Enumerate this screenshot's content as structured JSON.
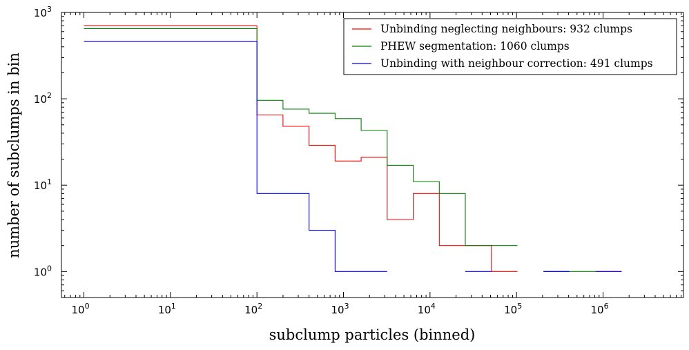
{
  "chart_data": {
    "type": "line",
    "drawstyle": "steps",
    "title": "",
    "xlabel": "subclump particles (binned)",
    "ylabel": "number of subclumps in bin",
    "xscale": "log",
    "yscale": "log",
    "xlim": [
      0.55,
      8500000
    ],
    "ylim": [
      0.5,
      1000
    ],
    "x_ticks": [
      {
        "base": "10",
        "exp": "0",
        "value": 1
      },
      {
        "base": "10",
        "exp": "1",
        "value": 10
      },
      {
        "base": "10",
        "exp": "2",
        "value": 100
      },
      {
        "base": "10",
        "exp": "3",
        "value": 1000
      },
      {
        "base": "10",
        "exp": "4",
        "value": 10000
      },
      {
        "base": "10",
        "exp": "5",
        "value": 100000
      },
      {
        "base": "10",
        "exp": "6",
        "value": 1000000
      }
    ],
    "y_ticks": [
      {
        "base": "10",
        "exp": "0",
        "value": 1
      },
      {
        "base": "10",
        "exp": "1",
        "value": 10
      },
      {
        "base": "10",
        "exp": "2",
        "value": 100
      },
      {
        "base": "10",
        "exp": "3",
        "value": 1000
      }
    ],
    "legend_position": "top-right",
    "series": [
      {
        "name": "Unbinding neglecting neighbours: 932 clumps",
        "color": "#ff0000",
        "segments": [
          [
            [
              1,
              700
            ],
            [
              100,
              700
            ],
            [
              100,
              65
            ],
            [
              200,
              65
            ],
            [
              200,
              48
            ],
            [
              400,
              48
            ],
            [
              400,
              29
            ],
            [
              800,
              29
            ],
            [
              800,
              19
            ],
            [
              1600,
              19
            ],
            [
              1600,
              21
            ],
            [
              3200,
              21
            ],
            [
              3200,
              4
            ],
            [
              6400,
              4
            ],
            [
              6400,
              8
            ],
            [
              12800,
              8
            ],
            [
              12800,
              2
            ],
            [
              51200,
              2
            ],
            [
              51200,
              1
            ],
            [
              102400,
              1
            ]
          ],
          [
            [
              204800,
              1
            ],
            [
              409600,
              1
            ]
          ],
          [
            [
              819200,
              1
            ],
            [
              1638400,
              1
            ]
          ]
        ]
      },
      {
        "name": "PHEW segmentation: 1060 clumps",
        "color": "#008000",
        "segments": [
          [
            [
              1,
              650
            ],
            [
              100,
              650
            ],
            [
              100,
              96
            ],
            [
              200,
              96
            ],
            [
              200,
              76
            ],
            [
              400,
              76
            ],
            [
              400,
              68
            ],
            [
              800,
              68
            ],
            [
              800,
              59
            ],
            [
              1600,
              59
            ],
            [
              1600,
              43
            ],
            [
              3200,
              43
            ],
            [
              3200,
              17
            ],
            [
              6400,
              17
            ],
            [
              6400,
              11
            ],
            [
              12800,
              11
            ],
            [
              12800,
              8
            ],
            [
              25600,
              8
            ],
            [
              25600,
              2
            ],
            [
              102400,
              2
            ]
          ],
          [
            [
              204800,
              1
            ],
            [
              819200,
              1
            ]
          ]
        ]
      },
      {
        "name": "Unbinding with neighbour correction: 491 clumps",
        "color": "#0000ff",
        "segments": [
          [
            [
              1,
              460
            ],
            [
              100,
              460
            ],
            [
              100,
              8
            ],
            [
              400,
              8
            ],
            [
              400,
              3
            ],
            [
              800,
              3
            ],
            [
              800,
              1
            ],
            [
              3200,
              1
            ]
          ],
          [
            [
              25600,
              1
            ],
            [
              51200,
              1
            ]
          ],
          [
            [
              204800,
              1
            ],
            [
              409600,
              1
            ]
          ],
          [
            [
              819200,
              1
            ],
            [
              1638400,
              1
            ]
          ]
        ]
      }
    ]
  }
}
